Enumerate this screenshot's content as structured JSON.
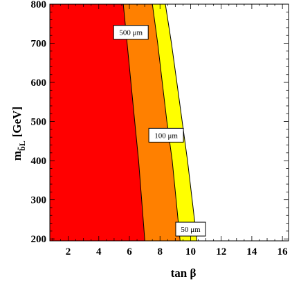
{
  "chart_data": {
    "type": "area",
    "xlabel": "tan β",
    "ylabel_main": "m",
    "ylabel_sub": "b̃L",
    "ylabel_unit": "[GeV]",
    "xlim": [
      0.8,
      16.4
    ],
    "ylim": [
      195,
      800
    ],
    "xticks": [
      2,
      4,
      6,
      8,
      10,
      12,
      14,
      16
    ],
    "yticks": [
      200,
      300,
      400,
      500,
      600,
      700,
      800
    ],
    "y": [
      200,
      300,
      400,
      500,
      600,
      700,
      800
    ],
    "regions": [
      {
        "label": "500 μm",
        "color": "#ff0000",
        "x": [
          7.0,
          6.8,
          6.6,
          6.35,
          6.1,
          5.85,
          5.6
        ]
      },
      {
        "label": "100 μm",
        "color": "#ff8000",
        "x": [
          9.3,
          9.05,
          8.8,
          8.45,
          8.15,
          7.85,
          7.5
        ]
      },
      {
        "label": "50 μm",
        "color": "#ffff00",
        "x": [
          10.4,
          10.1,
          9.8,
          9.45,
          9.1,
          8.75,
          8.35
        ]
      }
    ],
    "contour_labels": [
      {
        "text": "500 μm",
        "x": 6.1,
        "y": 728
      },
      {
        "text": "100 μm",
        "x": 8.4,
        "y": 465
      },
      {
        "text": "50 μm",
        "x": 10.0,
        "y": 225
      }
    ],
    "colors": {
      "background": "#ffffff"
    },
    "grid": false
  }
}
